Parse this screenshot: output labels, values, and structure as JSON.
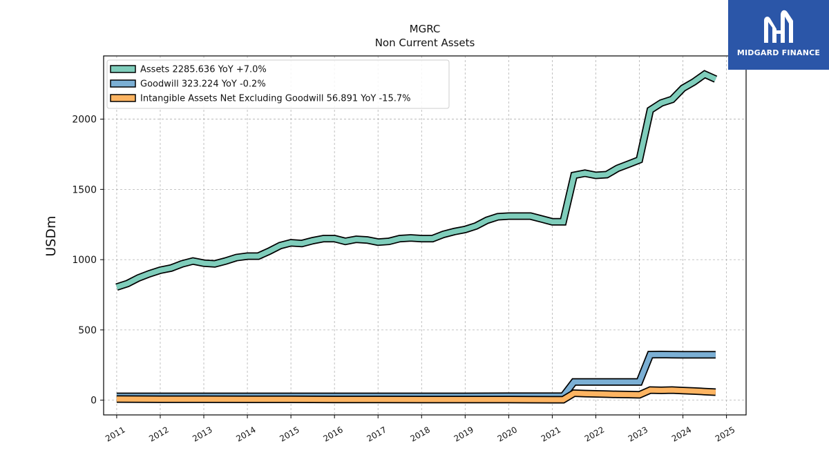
{
  "brand": {
    "name": "MIDGARD FINANCE",
    "bg_color": "#2b56a8",
    "icon": "midgard-m-logo-icon"
  },
  "chart_data": {
    "type": "line",
    "title": "MGRC",
    "subtitle": "Non Current  Assets",
    "xlabel": "",
    "ylabel": "USDm",
    "xlim": [
      2010.7,
      2025.45
    ],
    "ylim": [
      -105,
      2450
    ],
    "x_ticks": [
      2011,
      2012,
      2013,
      2014,
      2015,
      2016,
      2017,
      2018,
      2019,
      2020,
      2021,
      2022,
      2023,
      2024,
      2025
    ],
    "x_tick_labels": [
      "2011",
      "2012",
      "2013",
      "2014",
      "2015",
      "2016",
      "2017",
      "2018",
      "2019",
      "2020",
      "2021",
      "2022",
      "2023",
      "2024",
      "2025"
    ],
    "y_ticks": [
      0,
      500,
      1000,
      1500,
      2000
    ],
    "y_tick_labels": [
      "0",
      "500",
      "1000",
      "1500",
      "2000"
    ],
    "grid": true,
    "legend_position": "top-left",
    "series": [
      {
        "name": "Assets  2285.636 YoY +7.0%",
        "color": "#7fcdbb",
        "x": [
          2011.0,
          2011.25,
          2011.5,
          2011.75,
          2012.0,
          2012.25,
          2012.5,
          2012.75,
          2013.0,
          2013.25,
          2013.5,
          2013.75,
          2014.0,
          2014.25,
          2014.5,
          2014.75,
          2015.0,
          2015.25,
          2015.5,
          2015.75,
          2016.0,
          2016.25,
          2016.5,
          2016.75,
          2017.0,
          2017.25,
          2017.5,
          2017.75,
          2018.0,
          2018.25,
          2018.5,
          2018.75,
          2019.0,
          2019.25,
          2019.5,
          2019.75,
          2020.0,
          2020.25,
          2020.5,
          2020.75,
          2021.0,
          2021.25,
          2021.5,
          2021.75,
          2022.0,
          2022.25,
          2022.5,
          2022.75,
          2023.0,
          2023.25,
          2023.5,
          2023.75,
          2024.0,
          2024.25,
          2024.5,
          2024.75
        ],
        "values": [
          805,
          830,
          870,
          900,
          925,
          940,
          970,
          990,
          975,
          970,
          990,
          1015,
          1025,
          1025,
          1060,
          1100,
          1120,
          1115,
          1135,
          1150,
          1150,
          1130,
          1145,
          1140,
          1125,
          1130,
          1150,
          1155,
          1150,
          1150,
          1180,
          1200,
          1215,
          1240,
          1280,
          1305,
          1310,
          1310,
          1310,
          1290,
          1270,
          1270,
          1600,
          1615,
          1600,
          1605,
          1650,
          1680,
          1710,
          2065,
          2115,
          2140,
          2220,
          2265,
          2320,
          2285
        ]
      },
      {
        "name": "Goodwill  323.224 YoY -0.2%",
        "color": "#7bafd4",
        "x": [
          2011.0,
          2012.0,
          2013.0,
          2014.0,
          2015.0,
          2016.0,
          2017.0,
          2018.0,
          2019.0,
          2020.0,
          2021.0,
          2021.25,
          2021.5,
          2021.75,
          2022.0,
          2022.25,
          2022.5,
          2022.75,
          2023.0,
          2023.25,
          2023.5,
          2023.75,
          2024.0,
          2024.25,
          2024.5,
          2024.75
        ],
        "values": [
          27,
          27,
          27,
          27,
          27,
          27,
          27,
          27,
          27,
          28,
          28,
          28,
          130,
          130,
          130,
          130,
          130,
          130,
          130,
          324,
          325,
          324,
          323,
          323,
          323,
          323
        ]
      },
      {
        "name": "Intangible Assets Net Excluding Goodwill  56.891 YoY -15.7%",
        "color": "#fdb462",
        "x": [
          2011.0,
          2012.0,
          2013.0,
          2014.0,
          2015.0,
          2016.0,
          2017.0,
          2018.0,
          2019.0,
          2020.0,
          2021.0,
          2021.25,
          2021.5,
          2021.75,
          2022.0,
          2022.25,
          2022.5,
          2022.75,
          2023.0,
          2023.25,
          2023.5,
          2023.75,
          2024.0,
          2024.25,
          2024.5,
          2024.75
        ],
        "values": [
          8,
          7,
          7,
          6,
          6,
          5,
          5,
          4,
          4,
          4,
          3,
          3,
          50,
          47,
          45,
          43,
          41,
          40,
          38,
          72,
          70,
          72,
          68,
          65,
          61,
          57
        ]
      }
    ]
  }
}
